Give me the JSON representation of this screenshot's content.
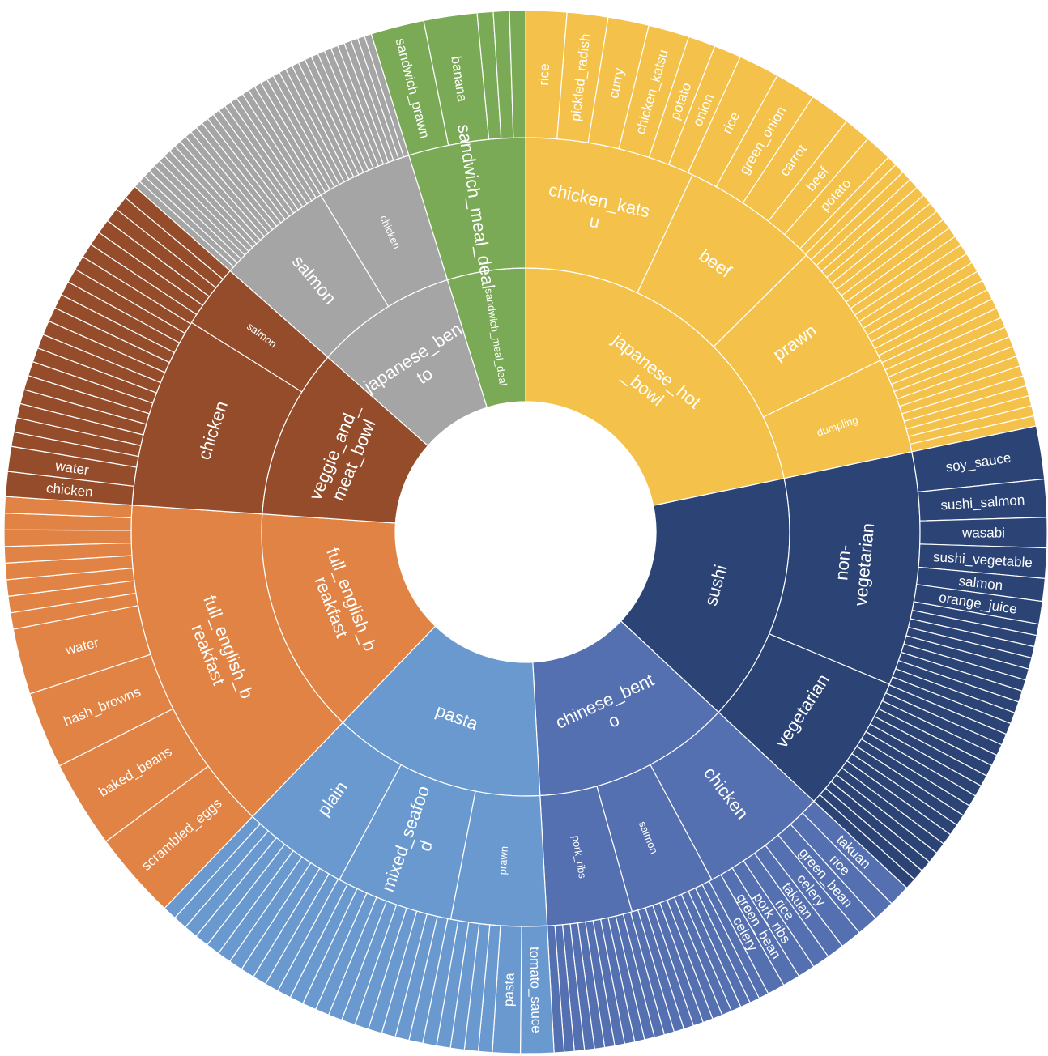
{
  "chart_data": {
    "type": "sunburst",
    "title": "",
    "colors": {
      "japanese_hot_bowl": "#F4C24A",
      "sushi": "#2B4475",
      "chinese_bento": "#5470B0",
      "pasta": "#6A99CF",
      "full_english_breakfast": "#E08344",
      "veggie_and_meat_bowl": "#944C2B",
      "japanese_bento": "#A5A5A5",
      "sandwich_meal_deal": "#7BAA57"
    },
    "rings": {
      "inner": [
        {
          "label": "japanese_hot\n_bowl",
          "group": "japanese_hot_bowl",
          "value": 50
        },
        {
          "label": "sushi",
          "group": "sushi",
          "value": 35
        },
        {
          "label": "chinese_bent\no",
          "group": "chinese_bento",
          "value": 28
        },
        {
          "label": "pasta",
          "group": "pasta",
          "value": 30
        },
        {
          "label": "full_english_b\nreakfast",
          "group": "full_english_breakfast",
          "value": 32
        },
        {
          "label": "veggie_and_\nmeat_bowl",
          "group": "veggie_and_meat_bowl",
          "value": 24
        },
        {
          "label": "japanese_ben\nto",
          "group": "japanese_bento",
          "value": 20
        },
        {
          "label": "sandwich_meal_deal",
          "group": "sandwich_meal_deal",
          "value": 11
        }
      ],
      "middle": [
        {
          "label": "chicken_kats\nu",
          "group": "japanese_hot_bowl",
          "value": 16
        },
        {
          "label": "beef",
          "group": "japanese_hot_bowl",
          "value": 13
        },
        {
          "label": "prawn",
          "group": "japanese_hot_bowl",
          "value": 12
        },
        {
          "label": "dumpling",
          "group": "japanese_hot_bowl",
          "value": 9
        },
        {
          "label": "non-\nvegetarian",
          "group": "sushi",
          "value": 22
        },
        {
          "label": "vegetarian",
          "group": "sushi",
          "value": 13
        },
        {
          "label": "chicken",
          "group": "chinese_bento",
          "value": 12
        },
        {
          "label": "salmon",
          "group": "chinese_bento",
          "value": 8
        },
        {
          "label": "pork_ribs",
          "group": "chinese_bento",
          "value": 8
        },
        {
          "label": "prawn",
          "group": "pasta",
          "value": 9
        },
        {
          "label": "mixed_seafoo\nd",
          "group": "pasta",
          "value": 11
        },
        {
          "label": "plain",
          "group": "pasta",
          "value": 10
        },
        {
          "label": "full_english_b\nreakfast",
          "group": "full_english_breakfast",
          "value": 32
        },
        {
          "label": "chicken",
          "group": "veggie_and_meat_bowl",
          "value": 18
        },
        {
          "label": "salmon",
          "group": "veggie_and_meat_bowl",
          "value": 6
        },
        {
          "label": "salmon",
          "group": "japanese_bento",
          "value": 11
        },
        {
          "label": "chicken",
          "group": "japanese_bento",
          "value": 9
        },
        {
          "label": "sandwich_meal_deal",
          "group": "sandwich_meal_deal",
          "value": 11
        }
      ],
      "outer_labels": {
        "japanese_hot_bowl": [
          {
            "label": "rice",
            "value": 3
          },
          {
            "label": "pickled_radish",
            "value": 3
          },
          {
            "label": "curry",
            "value": 3
          },
          {
            "label": "chicken_katsu",
            "value": 3
          },
          {
            "label": "potato",
            "value": 2
          },
          {
            "label": "onion",
            "value": 2
          },
          {
            "label": "rice",
            "value": 3
          },
          {
            "label": "green_onion",
            "value": 3
          },
          {
            "label": "carrot",
            "value": 3
          },
          {
            "label": "beef",
            "value": 2
          },
          {
            "label": "potato",
            "value": 2
          }
        ],
        "sushi": [
          {
            "label": "soy_sauce",
            "value": 3.5
          },
          {
            "label": "sushi_salmon",
            "value": 2.5
          },
          {
            "label": "wasabi",
            "value": 2
          },
          {
            "label": "sushi_vegetable",
            "value": 2
          },
          {
            "label": "salmon",
            "value": 1.5
          },
          {
            "label": "orange_juice",
            "value": 1.5
          }
        ],
        "chinese_bento": [
          {
            "label": "takuan",
            "value": 1.6
          },
          {
            "label": "rice",
            "value": 1.6
          },
          {
            "label": "green_bean",
            "value": 1.6
          },
          {
            "label": "celery",
            "value": 1.6
          },
          {
            "label": "takuan",
            "value": 1.3
          },
          {
            "label": "rice",
            "value": 1.3
          },
          {
            "label": "pork_ribs",
            "value": 1.3
          },
          {
            "label": "green_bean",
            "value": 1.3
          },
          {
            "label": "celery",
            "value": 1.3
          }
        ],
        "pasta": [
          {
            "label": "tomato_sauce",
            "value": 1.8
          },
          {
            "label": "pasta",
            "value": 1.5
          }
        ],
        "full_english_breakfast": [
          {
            "label": "scrambled_eggs",
            "value": 4
          },
          {
            "label": "baked_beans",
            "value": 4
          },
          {
            "label": "hash_browns",
            "value": 3.5
          },
          {
            "label": "water",
            "value": 3
          }
        ],
        "veggie_and_meat_bowl": [
          {
            "label": "chicken",
            "value": 1.3
          },
          {
            "label": "water",
            "value": 1.3
          }
        ],
        "sandwich_meal_deal": [
          {
            "label": "sandwich_prawn",
            "value": 2.5
          },
          {
            "label": "banana",
            "value": 2.5
          }
        ]
      }
    }
  }
}
